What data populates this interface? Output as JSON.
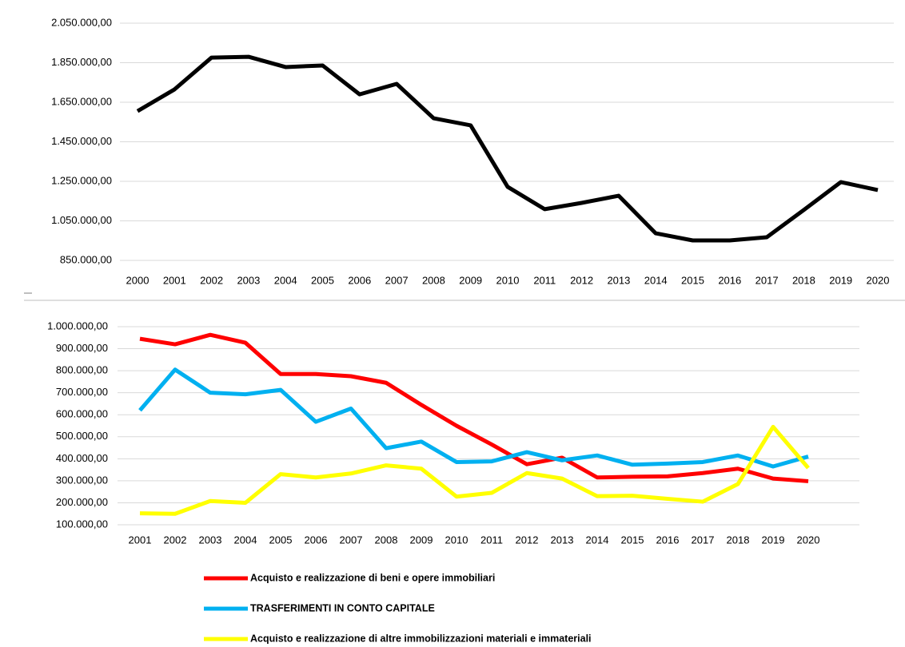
{
  "chart_data": [
    {
      "type": "line",
      "categories": [
        "2000",
        "2001",
        "2002",
        "2003",
        "2004",
        "2005",
        "2006",
        "2007",
        "2008",
        "2009",
        "2010",
        "2011",
        "2012",
        "2013",
        "2014",
        "2015",
        "2016",
        "2017",
        "2018",
        "2019",
        "2020"
      ],
      "series": [
        {
          "color": "#000000",
          "values": [
            1605000,
            1715000,
            1876000,
            1880000,
            1828000,
            1836000,
            1690000,
            1743000,
            1569000,
            1533000,
            1222000,
            1109000,
            1141000,
            1177000,
            987000,
            951000,
            951000,
            967000,
            1105000,
            1246000,
            1206000
          ]
        }
      ],
      "ylim": [
        850000,
        2050000
      ],
      "yticks": [
        {
          "value": 850000,
          "label": "850.000,00"
        },
        {
          "value": 1050000,
          "label": "1.050.000,00"
        },
        {
          "value": 1250000,
          "label": "1.250.000,00"
        },
        {
          "value": 1450000,
          "label": "1.450.000,00"
        },
        {
          "value": 1650000,
          "label": "1.650.000,00"
        },
        {
          "value": 1850000,
          "label": "1.850.000,00"
        },
        {
          "value": 2050000,
          "label": "2.050.000,00"
        }
      ],
      "grid": true
    },
    {
      "type": "line",
      "categories": [
        "2001",
        "2002",
        "2003",
        "2004",
        "2005",
        "2006",
        "2007",
        "2008",
        "2009",
        "2010",
        "2011",
        "2012",
        "2013",
        "2014",
        "2015",
        "2016",
        "2017",
        "2018",
        "2019",
        "2020"
      ],
      "series": [
        {
          "name": "Acquisto e realizzazione di beni e opere immobiliari",
          "color": "#ff0000",
          "values": [
            945000,
            920000,
            963000,
            927000,
            785000,
            785000,
            775000,
            745000,
            645000,
            550000,
            465000,
            375000,
            405000,
            315000,
            318000,
            320000,
            335000,
            355000,
            310000,
            298000
          ]
        },
        {
          "name": "TRASFERIMENTI IN CONTO CAPITALE",
          "color": "#00b0f0",
          "values": [
            620000,
            805000,
            700000,
            693000,
            713000,
            568000,
            628000,
            448000,
            478000,
            385000,
            388000,
            430000,
            393000,
            415000,
            373000,
            378000,
            385000,
            415000,
            365000,
            410000
          ]
        },
        {
          "name": "Acquisto e realizzazione di altre immobilizzazioni materiali e immateriali",
          "color": "#ffff00",
          "values": [
            152000,
            150000,
            208000,
            200000,
            330000,
            315000,
            333000,
            370000,
            355000,
            228000,
            245000,
            335000,
            310000,
            230000,
            232000,
            218000,
            205000,
            285000,
            545000,
            358000
          ]
        }
      ],
      "ylim": [
        100000,
        1000000
      ],
      "yticks": [
        {
          "value": 100000,
          "label": "100.000,00"
        },
        {
          "value": 200000,
          "label": "200.000,00"
        },
        {
          "value": 300000,
          "label": "300.000,00"
        },
        {
          "value": 400000,
          "label": "400.000,00"
        },
        {
          "value": 500000,
          "label": "500.000,00"
        },
        {
          "value": 600000,
          "label": "600.000,00"
        },
        {
          "value": 700000,
          "label": "700.000,00"
        },
        {
          "value": 800000,
          "label": "800.000,00"
        },
        {
          "value": 900000,
          "label": "900.000,00"
        },
        {
          "value": 1000000,
          "label": "1.000.000,00"
        }
      ],
      "grid": true,
      "legend": "bottom"
    }
  ]
}
